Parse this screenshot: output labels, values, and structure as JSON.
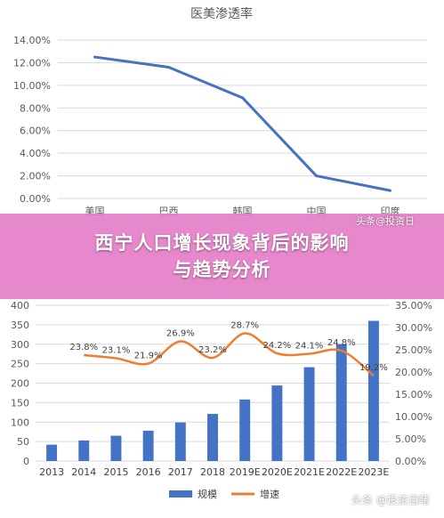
{
  "banner": {
    "line1": "西宁人口增长现象背后的影响",
    "line2": "与趋势分析"
  },
  "watermarks": {
    "top": "头条@投资日",
    "bottom": "头条 @投资目睹"
  },
  "chart_data": [
    {
      "type": "line",
      "title": "医美渗透率",
      "categories": [
        "美国",
        "巴西",
        "韩国",
        "中国",
        "印度"
      ],
      "series": [
        {
          "values": [
            12.5,
            11.6,
            8.9,
            2.0,
            0.7
          ],
          "color": "#4472c4"
        }
      ],
      "ylim": [
        0,
        14
      ],
      "yticks": [
        "0.00%",
        "2.00%",
        "4.00%",
        "6.00%",
        "8.00%",
        "10.00%",
        "12.00%",
        "14.00%"
      ],
      "grid": true
    },
    {
      "type": "bar",
      "categories": [
        "2013",
        "2014",
        "2015",
        "2016",
        "2017",
        "2018",
        "2019E",
        "2020E",
        "2021E",
        "2022E",
        "2023E"
      ],
      "series": [
        {
          "name": "规模",
          "type": "bar",
          "axis": "left",
          "color": "#4472c4",
          "values": [
            42,
            53,
            65,
            78,
            99,
            121,
            158,
            194,
            241,
            300,
            360
          ]
        },
        {
          "name": "增速",
          "type": "line",
          "axis": "right",
          "color": "#ed7d31",
          "values": [
            null,
            23.8,
            23.1,
            21.9,
            26.9,
            23.2,
            28.7,
            24.2,
            24.1,
            24.8,
            19.2
          ],
          "labels": [
            "",
            "23.8%",
            "23.1%",
            "21.9%",
            "26.9%",
            "23.2%",
            "28.7%",
            "24.2%",
            "24.1%",
            "24.8%",
            "19.2%"
          ]
        }
      ],
      "ylim_left": [
        0,
        400
      ],
      "ylim_right": [
        0,
        35
      ],
      "yticks_left": [
        "0",
        "50",
        "100",
        "150",
        "200",
        "250",
        "300",
        "350",
        "400"
      ],
      "yticks_right": [
        "0.00%",
        "5.00%",
        "10.00%",
        "15.00%",
        "20.00%",
        "25.00%",
        "30.00%",
        "35.00%"
      ],
      "legend_position": "bottom",
      "grid": true
    }
  ]
}
